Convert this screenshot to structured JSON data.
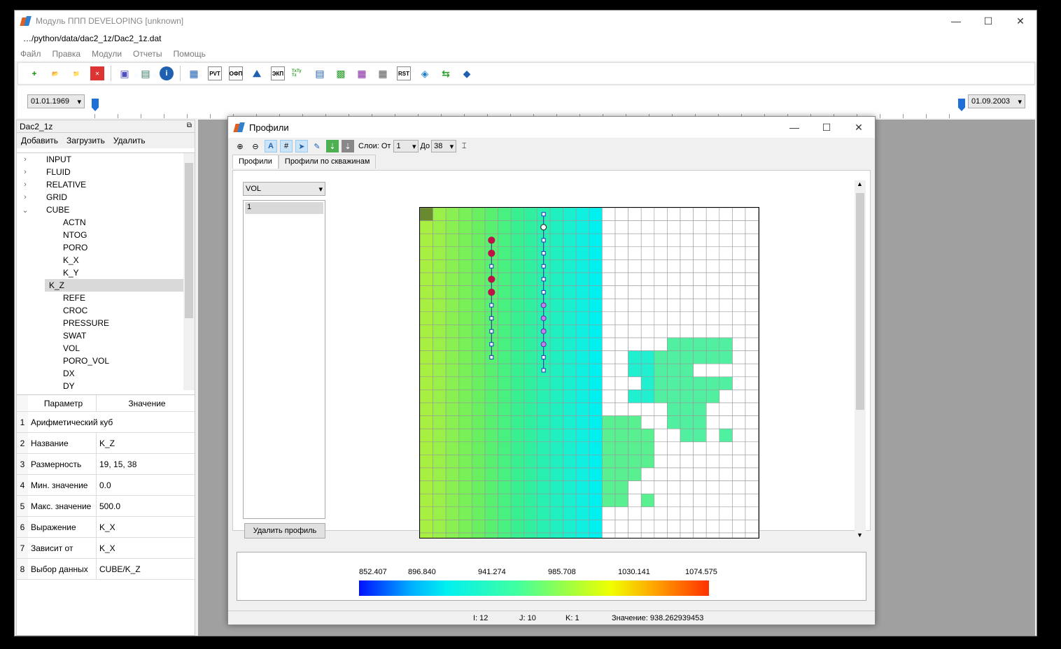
{
  "window": {
    "title": "Модуль ППП DEVELOPING [unknown]",
    "minimize": "—",
    "maximize": "☐",
    "close": "✕",
    "file_tab": "…/python/data/dac2_1z/Dac2_1z.dat"
  },
  "menu": [
    "Файл",
    "Правка",
    "Модули",
    "Отчеты",
    "Помощь"
  ],
  "toolbar": {
    "pvt": "PVT",
    "ofp": "ОФП",
    "ekp": "ЭКП",
    "tx": "TxTy Tz",
    "rst": "RST"
  },
  "timeline": {
    "start_date": "01.01.1969",
    "end_date": "01.09.2003",
    "start_fraction": 0.0,
    "end_fraction": 1.0
  },
  "left_panel": {
    "title": "Dac2_1z",
    "actions": [
      "Добавить",
      "Загрузить",
      "Удалить"
    ],
    "tree": [
      {
        "label": "INPUT",
        "level": 0,
        "arrow": "›"
      },
      {
        "label": "FLUID",
        "level": 0,
        "arrow": "›"
      },
      {
        "label": "RELATIVE",
        "level": 0,
        "arrow": "›"
      },
      {
        "label": "GRID",
        "level": 0,
        "arrow": "›"
      },
      {
        "label": "CUBE",
        "level": 0,
        "arrow": "⌄"
      },
      {
        "label": "ACTN",
        "level": 1
      },
      {
        "label": "NTOG",
        "level": 1
      },
      {
        "label": "PORO",
        "level": 1
      },
      {
        "label": "K_X",
        "level": 1
      },
      {
        "label": "K_Y",
        "level": 1
      },
      {
        "label": "K_Z",
        "level": 1,
        "selected": true
      },
      {
        "label": "REFE",
        "level": 1
      },
      {
        "label": "CROC",
        "level": 1
      },
      {
        "label": "PRESSURE",
        "level": 1
      },
      {
        "label": "SWAT",
        "level": 1
      },
      {
        "label": "VOL",
        "level": 1
      },
      {
        "label": "PORO_VOL",
        "level": 1
      },
      {
        "label": "DX",
        "level": 1
      },
      {
        "label": "DY",
        "level": 1
      }
    ],
    "props_header": {
      "param": "Параметр",
      "value": "Значение"
    },
    "props": [
      {
        "n": "1",
        "param": "Арифметический куб",
        "value": ""
      },
      {
        "n": "2",
        "param": "Название",
        "value": "K_Z"
      },
      {
        "n": "3",
        "param": "Размерность",
        "value": "19, 15, 38"
      },
      {
        "n": "4",
        "param": "Мин. значение",
        "value": "0.0"
      },
      {
        "n": "5",
        "param": "Макс. значение",
        "value": "500.0"
      },
      {
        "n": "6",
        "param": "Выражение",
        "value": "K_X"
      },
      {
        "n": "7",
        "param": "Зависит от",
        "value": "K_X"
      },
      {
        "n": "8",
        "param": "Выбор данных",
        "value": "CUBE/K_Z"
      }
    ]
  },
  "profiles": {
    "title": "Профили",
    "layers_label": "Слои: От",
    "from": "1",
    "to_label": "До",
    "to": "38",
    "tabs": [
      "Профили",
      "Профили по скважинам"
    ],
    "variable": "VOL",
    "list_items": [
      "1"
    ],
    "delete_button": "Удалить профиль",
    "legend_labels": [
      "852.407",
      "896.840",
      "941.274",
      "985.708",
      "1030.141",
      "1074.575"
    ],
    "status": {
      "i": "I: 12",
      "j": "J: 10",
      "k": "K: 1",
      "value": "Значение: 938.262939453"
    }
  },
  "colors": {
    "accent": "#1e6fd6",
    "selection": "#d9d9d9",
    "well_marker": "#c0104a"
  }
}
